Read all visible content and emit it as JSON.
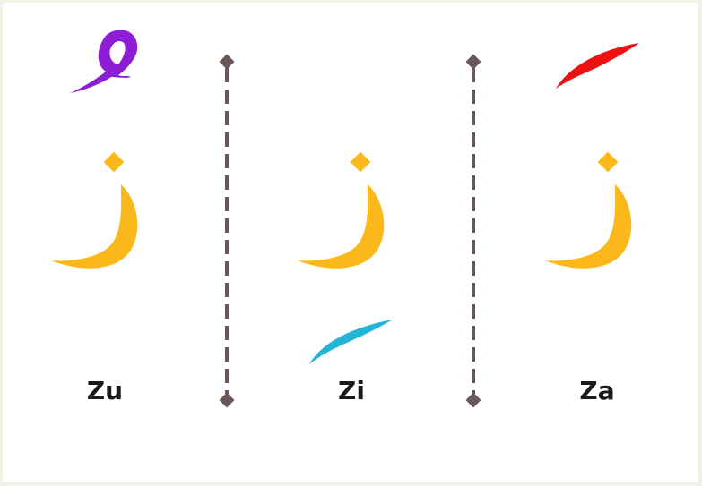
{
  "columns": [
    {
      "id": "zu",
      "label": "Zu",
      "diacritic": "dhammah",
      "diacritic_color": "#8e1ed6"
    },
    {
      "id": "zi",
      "label": "Zi",
      "diacritic": "kasrah",
      "diacritic_color": "#22b5d6"
    },
    {
      "id": "za",
      "label": "Za",
      "diacritic": "fathah",
      "diacritic_color": "#ee1111"
    }
  ],
  "letter_color": "#fbb81b",
  "divider_color": "#6b5757",
  "letter_icon": "arabic-letter-zay-icon"
}
